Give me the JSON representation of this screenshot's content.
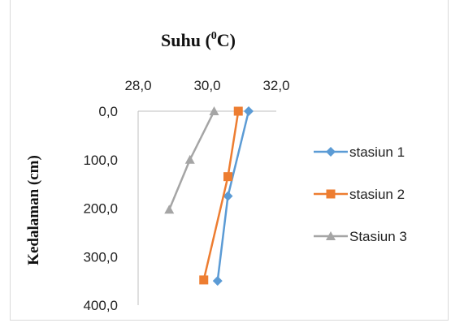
{
  "chart_data": {
    "type": "line",
    "title": "Suhu (⁰C)",
    "title_parts": [
      "Suhu (",
      "0",
      "C)"
    ],
    "xlabel": "",
    "ylabel": "Kedalaman (cm)",
    "x_axis_position": "top",
    "y_axis_inverted": true,
    "xlim": [
      28.0,
      32.0
    ],
    "ylim": [
      0.0,
      400.0
    ],
    "x_ticks": [
      "28,0",
      "30,0",
      "32,0"
    ],
    "x_tick_values": [
      28.0,
      30.0,
      32.0
    ],
    "y_ticks": [
      "0,0",
      "100,0",
      "200,0",
      "300,0",
      "400,0"
    ],
    "y_tick_values": [
      0,
      100,
      200,
      300,
      400
    ],
    "grid": false,
    "legend_position": "right",
    "series": [
      {
        "name": "stasiun 1",
        "color": "#5b9bd5",
        "marker": "diamond",
        "points": [
          [
            31.2,
            0
          ],
          [
            30.6,
            175
          ],
          [
            30.3,
            350
          ]
        ]
      },
      {
        "name": "stasiun 2",
        "color": "#ed7d31",
        "marker": "square",
        "points": [
          [
            30.9,
            0
          ],
          [
            30.6,
            135
          ],
          [
            29.9,
            348
          ]
        ]
      },
      {
        "name": "Stasiun 3",
        "color": "#a5a5a5",
        "marker": "triangle",
        "points": [
          [
            30.2,
            0
          ],
          [
            29.5,
            100
          ],
          [
            28.9,
            203
          ]
        ]
      }
    ]
  }
}
